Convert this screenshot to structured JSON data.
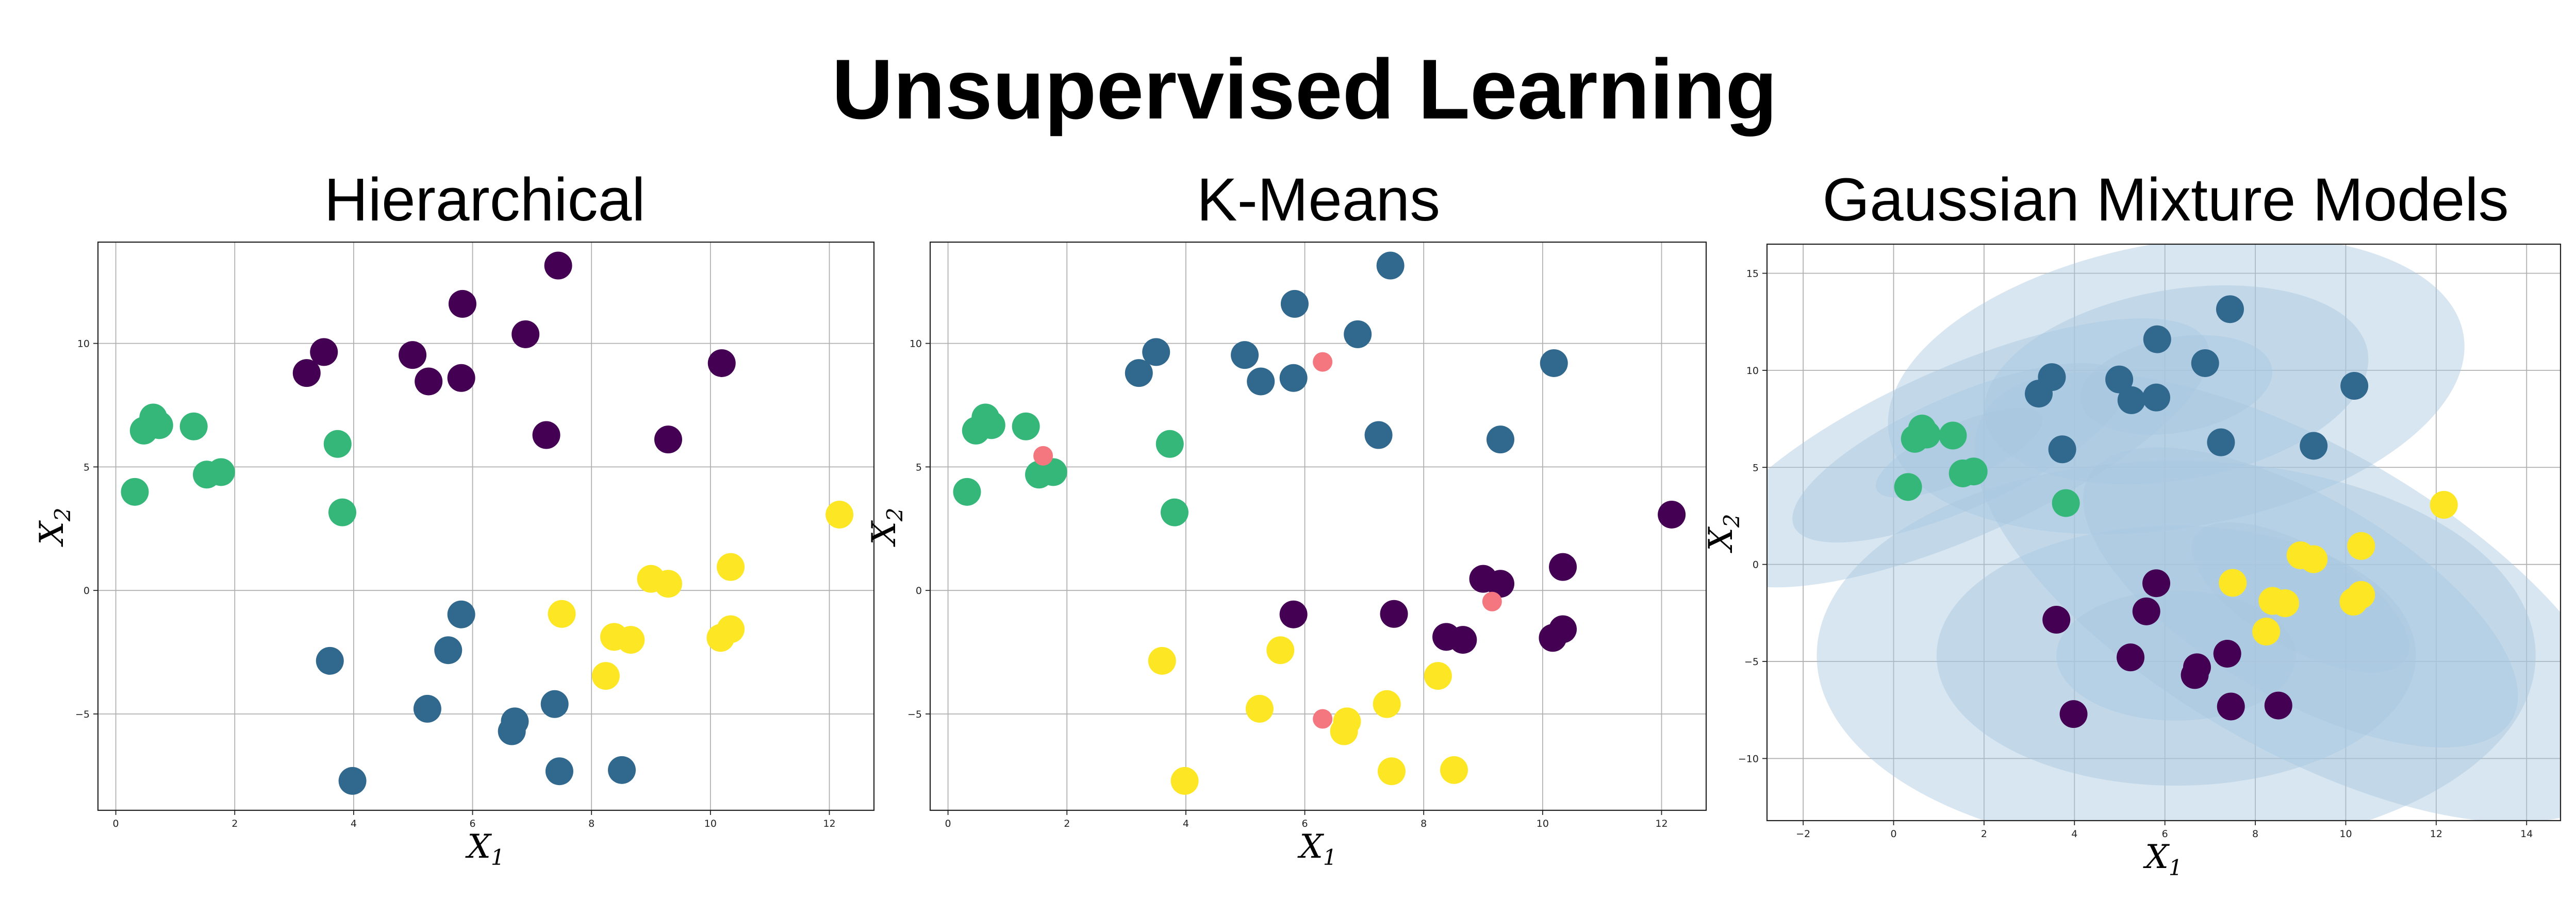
{
  "figure": {
    "suptitle": "Unsupervised Learning"
  },
  "palette": {
    "purple": "#440154",
    "blue": "#31688e",
    "green": "#35b779",
    "yellow": "#fde725",
    "centroid": "#f4777f",
    "ellipse": "#a9c8e0"
  },
  "chart_data": [
    {
      "type": "scatter",
      "title": "Hierarchical",
      "xlabel": "X1",
      "ylabel": "X2",
      "xlim": [
        -0.3,
        12.75
      ],
      "ylim": [
        -8.9,
        14.1
      ],
      "xticks": [
        0,
        2,
        4,
        6,
        8,
        10,
        12
      ],
      "yticks": [
        -5,
        0,
        5,
        10
      ],
      "grid": true,
      "series": [
        {
          "color": "purple",
          "points": [
            [
              3.21,
              8.8
            ],
            [
              3.5,
              9.65
            ],
            [
              4.99,
              9.53
            ],
            [
              5.26,
              8.46
            ],
            [
              5.81,
              8.6
            ],
            [
              5.83,
              11.6
            ],
            [
              6.89,
              10.37
            ],
            [
              7.44,
              13.15
            ],
            [
              7.24,
              6.29
            ],
            [
              9.29,
              6.11
            ],
            [
              10.19,
              9.2
            ]
          ]
        },
        {
          "color": "green",
          "points": [
            [
              0.32,
              3.99
            ],
            [
              0.47,
              6.47
            ],
            [
              0.63,
              7.0
            ],
            [
              0.73,
              6.69
            ],
            [
              1.31,
              6.64
            ],
            [
              1.53,
              4.69
            ],
            [
              1.77,
              4.79
            ],
            [
              3.73,
              5.93
            ],
            [
              3.81,
              3.16
            ]
          ]
        },
        {
          "color": "blue",
          "points": [
            [
              3.6,
              -2.85
            ],
            [
              3.98,
              -7.71
            ],
            [
              5.24,
              -4.79
            ],
            [
              5.59,
              -2.42
            ],
            [
              5.81,
              -0.97
            ],
            [
              6.71,
              -5.3
            ],
            [
              6.66,
              -5.7
            ],
            [
              7.38,
              -4.6
            ],
            [
              7.46,
              -7.32
            ],
            [
              8.51,
              -7.27
            ]
          ]
        },
        {
          "color": "yellow",
          "points": [
            [
              7.5,
              -0.95
            ],
            [
              8.24,
              -3.46
            ],
            [
              8.38,
              -1.88
            ],
            [
              8.66,
              -2.0
            ],
            [
              9.0,
              0.47
            ],
            [
              9.29,
              0.27
            ],
            [
              10.17,
              -1.92
            ],
            [
              10.34,
              0.95
            ],
            [
              10.34,
              -1.57
            ],
            [
              12.17,
              3.07
            ]
          ]
        }
      ]
    },
    {
      "type": "scatter",
      "title": "K-Means",
      "xlabel": "X1",
      "ylabel": "X2",
      "xlim": [
        -0.3,
        12.75
      ],
      "ylim": [
        -8.9,
        14.1
      ],
      "xticks": [
        0,
        2,
        4,
        6,
        8,
        10,
        12
      ],
      "yticks": [
        -5,
        0,
        5,
        10
      ],
      "grid": true,
      "series": [
        {
          "color": "blue",
          "points": [
            [
              3.21,
              8.8
            ],
            [
              3.5,
              9.65
            ],
            [
              4.99,
              9.53
            ],
            [
              5.26,
              8.46
            ],
            [
              5.81,
              8.6
            ],
            [
              5.83,
              11.6
            ],
            [
              6.89,
              10.37
            ],
            [
              7.44,
              13.15
            ],
            [
              7.24,
              6.29
            ],
            [
              9.29,
              6.11
            ],
            [
              10.19,
              9.2
            ]
          ]
        },
        {
          "color": "green",
          "points": [
            [
              0.32,
              3.99
            ],
            [
              0.47,
              6.47
            ],
            [
              0.63,
              7.0
            ],
            [
              0.73,
              6.69
            ],
            [
              1.31,
              6.64
            ],
            [
              1.53,
              4.69
            ],
            [
              1.77,
              4.79
            ],
            [
              3.73,
              5.93
            ],
            [
              3.81,
              3.16
            ]
          ]
        },
        {
          "color": "yellow",
          "points": [
            [
              3.6,
              -2.85
            ],
            [
              3.98,
              -7.71
            ],
            [
              5.24,
              -4.79
            ],
            [
              5.59,
              -2.42
            ],
            [
              6.71,
              -5.3
            ],
            [
              6.66,
              -5.7
            ],
            [
              7.38,
              -4.6
            ],
            [
              7.46,
              -7.32
            ],
            [
              8.51,
              -7.27
            ],
            [
              8.24,
              -3.46
            ]
          ]
        },
        {
          "color": "purple",
          "points": [
            [
              5.81,
              -0.97
            ],
            [
              7.5,
              -0.95
            ],
            [
              8.38,
              -1.88
            ],
            [
              8.66,
              -2.0
            ],
            [
              9.0,
              0.47
            ],
            [
              9.29,
              0.27
            ],
            [
              10.17,
              -1.92
            ],
            [
              10.34,
              0.95
            ],
            [
              10.34,
              -1.57
            ],
            [
              12.17,
              3.07
            ]
          ]
        }
      ],
      "centroids": [
        [
          6.3,
          9.25
        ],
        [
          1.6,
          5.45
        ],
        [
          6.3,
          -5.2
        ],
        [
          9.15,
          -0.45
        ]
      ]
    },
    {
      "type": "scatter",
      "title": "Gaussian Mixture Models",
      "xlabel": "X1",
      "ylabel": "X2",
      "xlim": [
        -2.8,
        14.75
      ],
      "ylim": [
        -13.2,
        16.5
      ],
      "xticks": [
        -2,
        0,
        2,
        4,
        6,
        8,
        10,
        12,
        14
      ],
      "yticks": [
        -10,
        -5,
        0,
        5,
        10,
        15
      ],
      "grid": true,
      "series": [
        {
          "color": "blue",
          "points": [
            [
              3.21,
              8.8
            ],
            [
              3.5,
              9.65
            ],
            [
              4.99,
              9.53
            ],
            [
              5.26,
              8.46
            ],
            [
              5.81,
              8.6
            ],
            [
              5.83,
              11.6
            ],
            [
              6.89,
              10.37
            ],
            [
              7.44,
              13.15
            ],
            [
              7.24,
              6.29
            ],
            [
              9.29,
              6.11
            ],
            [
              10.19,
              9.2
            ],
            [
              3.73,
              5.93
            ]
          ]
        },
        {
          "color": "green",
          "points": [
            [
              0.32,
              3.99
            ],
            [
              0.47,
              6.47
            ],
            [
              0.63,
              7.0
            ],
            [
              0.73,
              6.69
            ],
            [
              1.31,
              6.64
            ],
            [
              1.53,
              4.69
            ],
            [
              1.77,
              4.79
            ],
            [
              3.81,
              3.16
            ]
          ]
        },
        {
          "color": "purple",
          "points": [
            [
              3.6,
              -2.85
            ],
            [
              3.98,
              -7.71
            ],
            [
              5.24,
              -4.79
            ],
            [
              5.59,
              -2.42
            ],
            [
              5.81,
              -0.97
            ],
            [
              6.71,
              -5.3
            ],
            [
              6.66,
              -5.7
            ],
            [
              7.38,
              -4.6
            ],
            [
              7.46,
              -7.32
            ],
            [
              8.51,
              -7.27
            ]
          ]
        },
        {
          "color": "yellow",
          "points": [
            [
              7.5,
              -0.95
            ],
            [
              8.24,
              -3.46
            ],
            [
              8.38,
              -1.88
            ],
            [
              8.66,
              -2.0
            ],
            [
              9.0,
              0.47
            ],
            [
              9.29,
              0.27
            ],
            [
              10.17,
              -1.92
            ],
            [
              10.34,
              0.95
            ],
            [
              10.34,
              -1.57
            ],
            [
              12.17,
              3.07
            ]
          ]
        }
      ],
      "components": [
        {
          "center": [
            6.25,
            9.25
          ],
          "rx": 2.15,
          "ry": 2.45,
          "angle": -10
        },
        {
          "center": [
            1.45,
            5.75
          ],
          "rx": 2.0,
          "ry": 1.45,
          "angle": -24
        },
        {
          "center": [
            6.25,
            -4.7
          ],
          "rx": 2.65,
          "ry": 3.35,
          "angle": 0
        },
        {
          "center": [
            9.0,
            -1.7
          ],
          "rx": 2.7,
          "ry": 2.6,
          "angle": 30
        }
      ]
    }
  ]
}
